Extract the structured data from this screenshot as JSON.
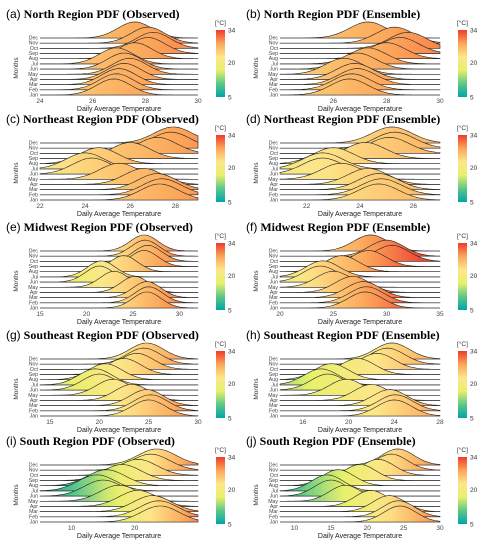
{
  "colorbar": {
    "unit_label": "[°C]",
    "tick_labels": [
      "34",
      "20",
      "5"
    ],
    "tick_values": [
      34,
      20,
      5
    ],
    "min": 5,
    "max": 34,
    "colors": [
      "#00a5a8",
      "#5cc78a",
      "#e8f06a",
      "#fde68a",
      "#fca55a",
      "#ef3b2c"
    ]
  },
  "axis_text": {
    "ylabel": "Months",
    "xlabel": "Daily Average Temperature",
    "months": [
      "Jan",
      "Feb",
      "Mar",
      "Apr",
      "May",
      "Jun",
      "Jul",
      "Aug",
      "Sep",
      "Oct",
      "Nov",
      "Dec"
    ]
  },
  "chart_data": [
    {
      "type": "ridgeline",
      "letter": "(a)",
      "title": "North Region PDF (Observed)",
      "xlim": [
        24,
        30
      ],
      "xticks": [
        24,
        26,
        28,
        30
      ],
      "ylabel": "Months",
      "xlabel": "Daily Average Temperature",
      "means": [
        26.8,
        26.9,
        27.0,
        27.2,
        27.4,
        27.2,
        26.9,
        27.6,
        28.1,
        28.3,
        28.1,
        27.6
      ],
      "sd": 0.65
    },
    {
      "type": "ridgeline",
      "letter": "(b)",
      "title": "North Region PDF (Ensemble)",
      "xlim": [
        24,
        30
      ],
      "xticks": [
        26,
        28,
        30
      ],
      "ylabel": "Months",
      "xlabel": "Daily Average Temperature",
      "means": [
        26.6,
        26.7,
        26.9,
        26.8,
        26.4,
        26.9,
        27.3,
        28.0,
        28.5,
        28.8,
        28.3,
        27.3
      ],
      "sd": 0.7
    },
    {
      "type": "ridgeline",
      "letter": "(c)",
      "title": "Northeast Region PDF (Observed)",
      "xlim": [
        22,
        29
      ],
      "xticks": [
        22,
        24,
        26,
        28
      ],
      "ylabel": "Months",
      "xlabel": "Daily Average Temperature",
      "means": [
        27.3,
        27.4,
        27.2,
        26.6,
        25.5,
        24.3,
        24.0,
        24.6,
        26.0,
        27.2,
        27.8,
        27.9
      ],
      "sd": 0.85
    },
    {
      "type": "ridgeline",
      "letter": "(d)",
      "title": "Northeast Region PDF (Ensemble)",
      "xlim": [
        21,
        27
      ],
      "xticks": [
        22,
        24,
        26
      ],
      "ylabel": "Months",
      "xlabel": "Daily Average Temperature",
      "means": [
        24.7,
        24.8,
        24.7,
        24.3,
        23.3,
        22.6,
        22.6,
        23.0,
        24.2,
        25.1,
        25.3,
        25.2
      ],
      "sd": 0.75
    },
    {
      "type": "ridgeline",
      "letter": "(e)",
      "title": "Midwest Region PDF (Observed)",
      "xlim": [
        15,
        32
      ],
      "xticks": [
        15,
        20,
        25,
        30
      ],
      "ylabel": "Months",
      "xlabel": "Daily Average Temperature",
      "means": [
        26.5,
        26.7,
        26.5,
        25.2,
        23.0,
        21.4,
        21.6,
        24.0,
        26.2,
        26.6,
        26.3,
        26.2
      ],
      "sd": 1.5
    },
    {
      "type": "ridgeline",
      "letter": "(f)",
      "title": "Midwest Region PDF (Ensemble)",
      "xlim": [
        20,
        35
      ],
      "xticks": [
        20,
        25,
        30,
        35
      ],
      "ylabel": "Months",
      "xlabel": "Daily Average Temperature",
      "means": [
        28.0,
        28.1,
        27.8,
        26.8,
        25.0,
        23.8,
        24.0,
        25.8,
        28.3,
        30.5,
        30.0,
        28.5
      ],
      "sd": 1.6
    },
    {
      "type": "ridgeline",
      "letter": "(g)",
      "title": "Southeast Region PDF (Observed)",
      "xlim": [
        14,
        30
      ],
      "xticks": [
        15,
        20,
        25,
        30
      ],
      "ylabel": "Months",
      "xlabel": "Daily Average Temperature",
      "means": [
        25.0,
        25.2,
        24.8,
        23.3,
        21.4,
        20.0,
        19.6,
        20.6,
        22.5,
        23.8,
        24.5,
        24.8
      ],
      "sd": 1.7
    },
    {
      "type": "ridgeline",
      "letter": "(h)",
      "title": "Southeast Region PDF (Ensemble)",
      "xlim": [
        14,
        28
      ],
      "xticks": [
        16,
        20,
        24,
        28
      ],
      "ylabel": "Months",
      "xlabel": "Daily Average Temperature",
      "means": [
        24.0,
        24.1,
        23.6,
        22.0,
        19.8,
        18.2,
        17.6,
        18.5,
        20.8,
        22.5,
        23.4,
        23.8
      ],
      "sd": 1.5
    },
    {
      "type": "ridgeline",
      "letter": "(i)",
      "title": "South Region PDF (Observed)",
      "xlim": [
        5,
        30
      ],
      "xticks": [
        10,
        20
      ],
      "ylabel": "Months",
      "xlabel": "Daily Average Temperature",
      "means": [
        24.0,
        23.8,
        22.8,
        20.5,
        17.5,
        15.0,
        14.0,
        15.5,
        18.0,
        20.5,
        22.5,
        23.5
      ],
      "sd": 3.0
    },
    {
      "type": "ridgeline",
      "letter": "(j)",
      "title": "South Region PDF (Ensemble)",
      "xlim": [
        8,
        30
      ],
      "xticks": [
        10,
        15,
        20,
        25,
        30
      ],
      "ylabel": "Months",
      "xlabel": "Daily Average Temperature",
      "means": [
        24.5,
        24.3,
        23.0,
        20.5,
        17.0,
        15.0,
        14.5,
        16.0,
        19.0,
        21.5,
        23.3,
        24.2
      ],
      "sd": 2.2
    }
  ]
}
